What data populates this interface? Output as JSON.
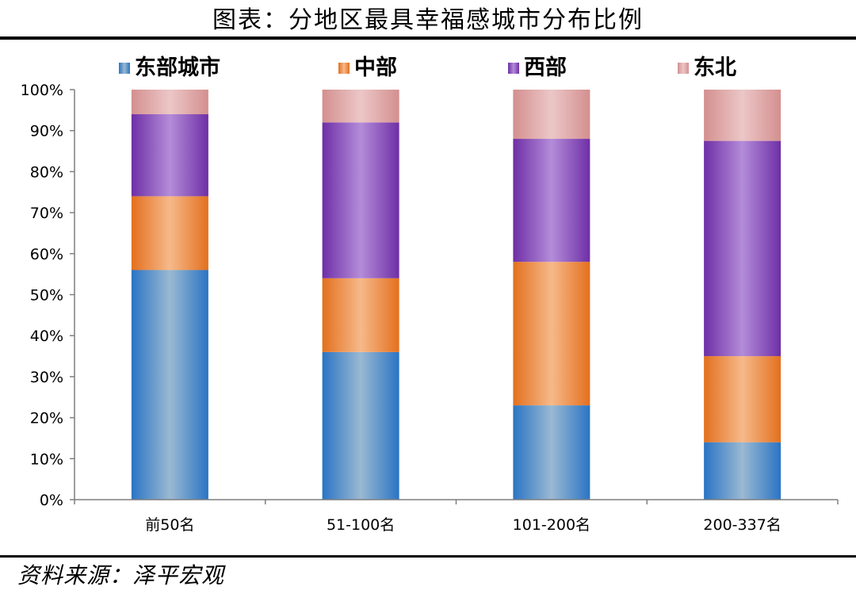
{
  "header": {
    "title": "图表：分地区最具幸福感城市分布比例"
  },
  "footer": {
    "source": "资料来源：泽平宏观"
  },
  "chart_data": {
    "type": "bar",
    "stacked": true,
    "title": "图表：分地区最具幸福感城市分布比例",
    "xlabel": "",
    "ylabel": "",
    "categories": [
      "前50名",
      "51-100名",
      "101-200名",
      "200-337名"
    ],
    "series": [
      {
        "name": "东部城市",
        "color": "#2a74c4",
        "light": "#9ab9d2",
        "values": [
          56,
          36,
          23,
          14
        ]
      },
      {
        "name": "中部",
        "color": "#e3701e",
        "light": "#f6b98a",
        "values": [
          18,
          18,
          35,
          21
        ]
      },
      {
        "name": "西部",
        "color": "#6e2fa6",
        "light": "#b48cd9",
        "values": [
          20,
          38,
          30,
          52.5
        ]
      },
      {
        "name": "东北",
        "color": "#d48f8f",
        "light": "#ecc7c7",
        "values": [
          6,
          8,
          12,
          12.5
        ]
      }
    ],
    "ylim": [
      0,
      100
    ],
    "yticks": [
      "0%",
      "10%",
      "20%",
      "30%",
      "40%",
      "50%",
      "60%",
      "70%",
      "80%",
      "90%",
      "100%"
    ],
    "grid": false,
    "legend": "top"
  }
}
